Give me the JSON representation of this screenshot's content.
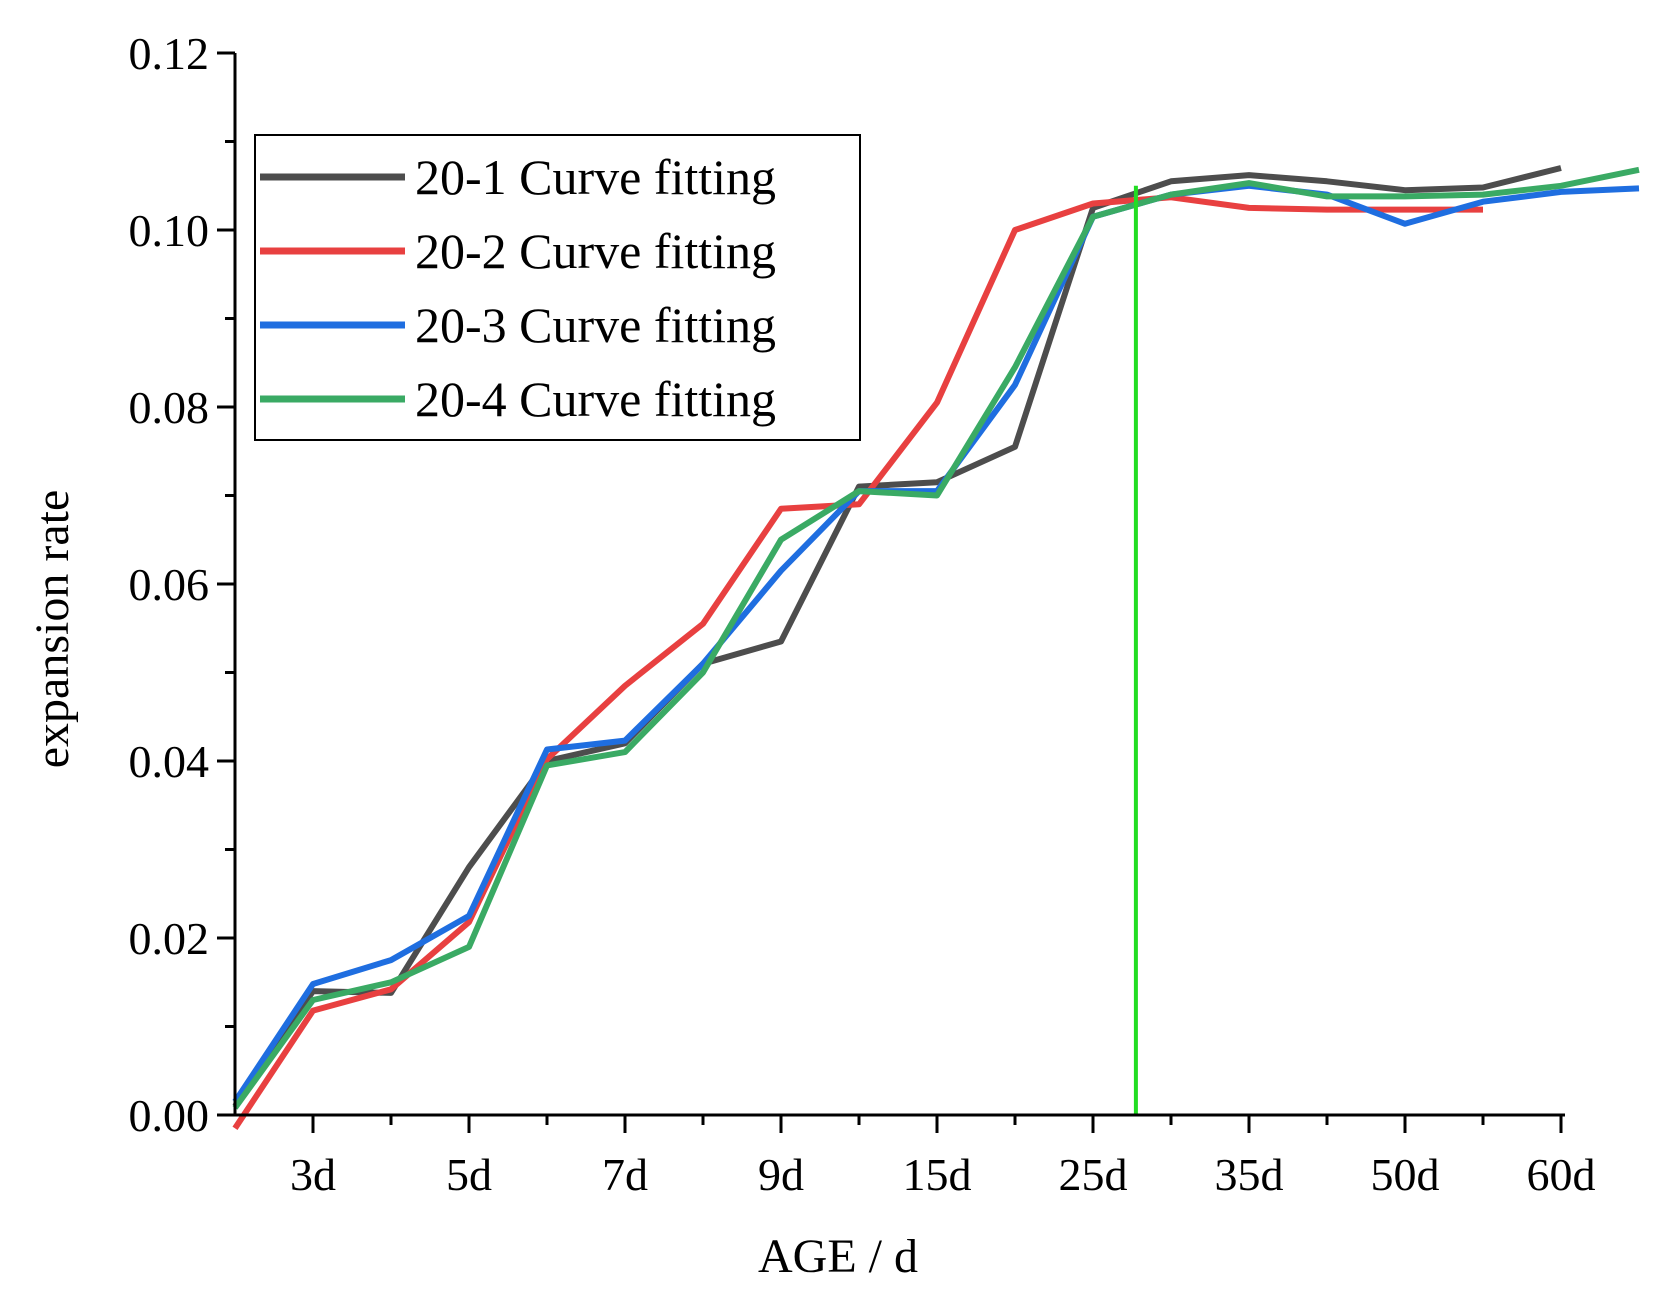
{
  "chart_data": {
    "type": "line",
    "title": "",
    "xlabel": "AGE  / d",
    "ylabel": "expansion  rate",
    "ylim": [
      0,
      0.12
    ],
    "yticks": [
      "0.00",
      "0.02",
      "0.04",
      "0.06",
      "0.08",
      "0.10",
      "0.12"
    ],
    "y_tick_values": [
      0,
      0.02,
      0.04,
      0.06,
      0.08,
      0.1,
      0.12
    ],
    "xlim": [
      1,
      18
    ],
    "xtick_labels": [
      "3d",
      "5d",
      "7d",
      "9d",
      "15d",
      "25d",
      "35d",
      "50d",
      "60d"
    ],
    "xtick_positions": [
      2,
      4,
      6,
      8,
      10,
      12,
      14,
      16,
      18
    ],
    "x_minor_ticks": [
      3,
      5,
      7,
      9,
      11,
      13,
      15,
      17
    ],
    "reference_line": {
      "x": 12.55,
      "y_from": 0,
      "y_to": 0.105,
      "color": "#22dd22"
    },
    "legend_position": "top-left",
    "series": [
      {
        "name": "20-1 Curve fitting",
        "color": "#4d4d4d",
        "x": [
          1,
          2,
          3,
          4,
          5,
          6,
          7,
          8,
          9,
          10,
          11,
          12,
          13,
          14,
          15,
          16,
          17,
          18
        ],
        "y": [
          0.001,
          0.014,
          0.0138,
          0.028,
          0.04,
          0.042,
          0.051,
          0.0535,
          0.071,
          0.0715,
          0.0755,
          0.1025,
          0.1055,
          0.1062,
          0.1055,
          0.1045,
          0.1048,
          0.107
        ]
      },
      {
        "name": "20-2 Curve fitting",
        "color": "#e84040",
        "x": [
          1,
          2,
          3,
          4,
          5,
          6,
          7,
          8,
          9,
          10,
          11,
          12,
          13,
          14,
          15,
          16,
          17
        ],
        "y": [
          -0.0015,
          0.0118,
          0.0142,
          0.0218,
          0.0402,
          0.0485,
          0.0555,
          0.0685,
          0.069,
          0.0805,
          0.1,
          0.103,
          0.1037,
          0.1025,
          0.1023,
          0.1023,
          0.1023
        ]
      },
      {
        "name": "20-3 Curve fitting",
        "color": "#1f6ee0",
        "x": [
          1,
          2,
          3,
          4,
          5,
          6,
          7,
          8,
          9,
          10,
          11,
          12,
          13,
          14,
          15,
          16,
          17,
          18,
          19
        ],
        "y": [
          0.0015,
          0.0148,
          0.0175,
          0.0225,
          0.0413,
          0.0423,
          0.051,
          0.0615,
          0.0705,
          0.0705,
          0.0825,
          0.1015,
          0.104,
          0.105,
          0.104,
          0.1007,
          0.1032,
          0.1043,
          0.1047
        ]
      },
      {
        "name": "20-4 Curve fitting",
        "color": "#3aaa64",
        "x": [
          1,
          2,
          3,
          4,
          5,
          6,
          7,
          8,
          9,
          10,
          11,
          12,
          13,
          14,
          15,
          16,
          17,
          18,
          19
        ],
        "y": [
          0.0008,
          0.013,
          0.015,
          0.019,
          0.0395,
          0.041,
          0.05,
          0.065,
          0.0705,
          0.07,
          0.0845,
          0.1015,
          0.104,
          0.1053,
          0.1038,
          0.1038,
          0.104,
          0.105,
          0.1068
        ]
      }
    ]
  }
}
